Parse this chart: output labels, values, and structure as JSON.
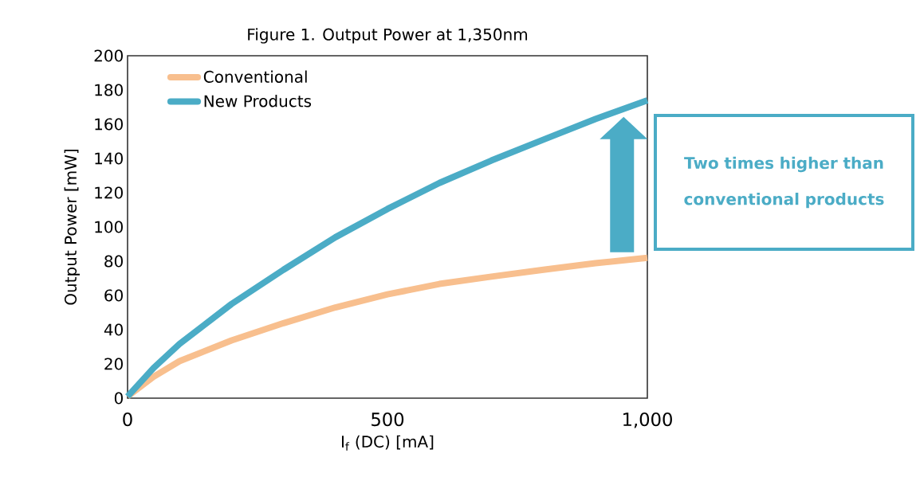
{
  "chart_data": {
    "type": "line",
    "title": "Figure 1. Output Power at 1,350nm",
    "xlabel": "I$_{f}$ (DC) [mA]",
    "ylabel": "Output Power [mW]",
    "annotations": [
      "Two times higher than conventional products"
    ],
    "series": [
      {
        "name": "Conventional",
        "color": "#f8bf8e",
        "x": [
          0,
          50,
          100,
          200,
          300,
          400,
          500,
          600,
          700,
          800,
          900,
          1000
        ],
        "values": [
          1,
          12.5,
          21.6,
          33.7,
          43.8,
          53,
          60.6,
          66.7,
          71,
          75,
          78.8,
          82
        ]
      },
      {
        "name": "New Products",
        "color": "#4bacc6",
        "x": [
          0,
          50,
          100,
          200,
          300,
          400,
          500,
          600,
          700,
          800,
          900,
          1000
        ],
        "values": [
          1,
          17.6,
          31.7,
          55,
          75,
          94,
          110.5,
          125.7,
          138.8,
          151,
          163,
          174
        ]
      }
    ],
    "xlim": [
      0,
      1000
    ],
    "xticks": [
      0,
      500,
      {
        "value": 1000,
        "label": "1,000"
      }
    ],
    "ylim": [
      0,
      200
    ],
    "yticks": [
      0,
      20,
      40,
      60,
      80,
      100,
      120,
      140,
      160,
      180,
      200
    ],
    "legend": "top left"
  }
}
